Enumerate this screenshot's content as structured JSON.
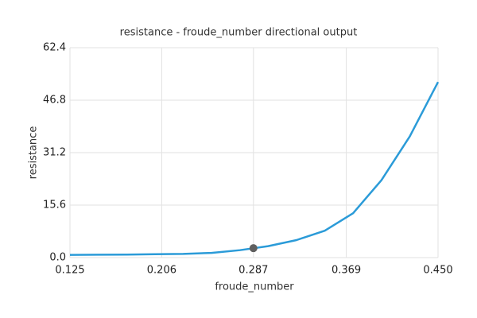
{
  "chart_data": {
    "type": "line",
    "title": "resistance - froude_number directional output",
    "xlabel": "froude_number",
    "ylabel": "resistance",
    "x": [
      0.125,
      0.15,
      0.175,
      0.2,
      0.225,
      0.25,
      0.275,
      0.3,
      0.325,
      0.35,
      0.375,
      0.4,
      0.425,
      0.45
    ],
    "series": [
      {
        "color": "#2b9bd8",
        "values": [
          0.8,
          0.85,
          0.9,
          1.0,
          1.1,
          1.4,
          2.2,
          3.4,
          5.2,
          8.0,
          13.2,
          23,
          36,
          52.2
        ]
      }
    ],
    "marker": {
      "x": 0.287,
      "y": 2.8,
      "color": "#5f5f5f"
    },
    "xlim": [
      0.125,
      0.45
    ],
    "xticks": [
      0.125,
      0.206,
      0.287,
      0.369,
      {
        "value": 0.45,
        "label": "0.450"
      }
    ],
    "ylim": [
      0,
      62.4
    ],
    "yticks": [
      {
        "value": 0,
        "label": "0.0"
      },
      15.6,
      31.2,
      46.8,
      62.4
    ],
    "grid": true
  }
}
